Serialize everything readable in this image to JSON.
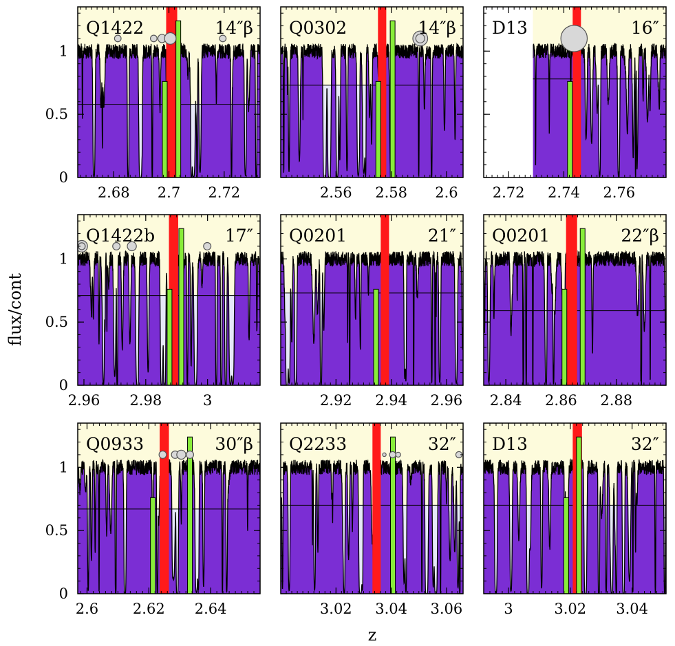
{
  "figure": {
    "ylabel": "flux/cont",
    "xlabel": "z",
    "yticks": [
      "0",
      "0.5",
      "1"
    ],
    "yrange": [
      0,
      1.35
    ]
  },
  "colors": {
    "background_panel": "#fdfbdc",
    "absorption_fill": "#7b2ed4",
    "threshold_shade": "#e6e8f8",
    "red_marker": "#ff1a1a",
    "green_marker": "#88ec3a",
    "circle_fill": "#d8d8d8",
    "circle_stroke": "#555555",
    "spectrum_line": "#000000"
  },
  "chart_data": [
    {
      "type": "area",
      "title": "Q1422",
      "sep": "14\"",
      "beta": true,
      "xlim": [
        2.667,
        2.733
      ],
      "xticks": [
        2.68,
        2.7,
        2.72
      ],
      "xticklabels": [
        "2.68",
        "2.7",
        "2.72"
      ],
      "threshold": 0.58,
      "cover_end": null,
      "red": [
        2.699,
        2.703
      ],
      "green": [
        {
          "z": 2.6985,
          "h": 0.76
        },
        {
          "z": 2.7034,
          "h": 1.24
        }
      ],
      "circles": [
        {
          "z": 2.6815,
          "y": 1.1,
          "r": 0.4
        },
        {
          "z": 2.6945,
          "y": 1.1,
          "r": 0.4
        },
        {
          "z": 2.6975,
          "y": 1.1,
          "r": 0.5
        },
        {
          "z": 2.7005,
          "y": 1.1,
          "r": 0.7
        },
        {
          "z": 2.7195,
          "y": 1.1,
          "r": 0.4
        }
      ],
      "seed": 11
    },
    {
      "type": "area",
      "title": "Q0302",
      "sep": "14\"",
      "beta": true,
      "xlim": [
        2.54,
        2.606
      ],
      "xticks": [
        2.56,
        2.58,
        2.6
      ],
      "xticklabels": [
        "2.56",
        "2.58",
        "2.6"
      ],
      "threshold": 0.73,
      "cover_end": null,
      "red": [
        2.5752,
        2.5782
      ],
      "green": [
        {
          "z": 2.5753,
          "h": 0.76
        },
        {
          "z": 2.5805,
          "h": 1.24
        }
      ],
      "circles": [
        {
          "z": 2.5905,
          "y": 1.1,
          "r": 0.9,
          "ring": true
        }
      ],
      "seed": 22
    },
    {
      "type": "area",
      "title": "D13",
      "sep": "16\"",
      "beta": false,
      "xlim": [
        2.711,
        2.777
      ],
      "xticks": [
        2.72,
        2.74,
        2.76
      ],
      "xticklabels": [
        "2.72",
        "2.74",
        "2.76"
      ],
      "threshold": 0.78,
      "cover_end": 2.7288,
      "red": [
        2.7432,
        2.7462
      ],
      "green": [
        {
          "z": 2.7422,
          "h": 0.76
        }
      ],
      "circles": [
        {
          "z": 2.7437,
          "y": 1.1,
          "r": 1.6
        }
      ],
      "seed": 33
    },
    {
      "type": "area",
      "title": "Q1422b",
      "sep": "17\"",
      "beta": false,
      "xlim": [
        2.958,
        3.017
      ],
      "xticks": [
        2.96,
        2.98,
        3.0
      ],
      "xticklabels": [
        "2.96",
        "2.98",
        "3"
      ],
      "threshold": 0.71,
      "cover_end": null,
      "red": [
        2.9875,
        2.9905
      ],
      "green": [
        {
          "z": 2.9877,
          "h": 0.76
        },
        {
          "z": 2.9915,
          "h": 1.24
        }
      ],
      "circles": [
        {
          "z": 2.9593,
          "y": 1.1,
          "r": 0.7,
          "ring": true
        },
        {
          "z": 2.9705,
          "y": 1.1,
          "r": 0.45
        },
        {
          "z": 2.9755,
          "y": 1.1,
          "r": 0.55
        },
        {
          "z": 2.9999,
          "y": 1.1,
          "r": 0.45
        }
      ],
      "seed": 44
    },
    {
      "type": "area",
      "title": "Q0201",
      "sep": "21\"",
      "beta": false,
      "xlim": [
        2.9,
        2.966
      ],
      "xticks": [
        2.92,
        2.94,
        2.96
      ],
      "xticklabels": [
        "2.92",
        "2.94",
        "2.96"
      ],
      "threshold": 0.73,
      "cover_end": null,
      "red": [
        2.9362,
        2.9392
      ],
      "green": [
        {
          "z": 2.9345,
          "h": 0.76
        }
      ],
      "circles": [],
      "seed": 55
    },
    {
      "type": "area",
      "title": "Q0201",
      "sep": "22\"",
      "beta": true,
      "xlim": [
        2.832,
        2.898
      ],
      "xticks": [
        2.84,
        2.86,
        2.88
      ],
      "xticklabels": [
        "2.84",
        "2.86",
        "2.88"
      ],
      "threshold": 0.59,
      "cover_end": null,
      "red": [
        2.8618,
        2.8658
      ],
      "green": [
        {
          "z": 2.8612,
          "h": 0.76
        },
        {
          "z": 2.8678,
          "h": 1.24
        }
      ],
      "circles": [],
      "seed": 66
    },
    {
      "type": "area",
      "title": "Q0933",
      "sep": "30\"",
      "beta": true,
      "xlim": [
        2.597,
        2.656
      ],
      "xticks": [
        2.6,
        2.62,
        2.64
      ],
      "xticklabels": [
        "2.6",
        "2.62",
        "2.64"
      ],
      "threshold": 0.67,
      "cover_end": null,
      "red": [
        2.6235,
        2.6265
      ],
      "green": [
        {
          "z": 2.6213,
          "h": 0.76
        },
        {
          "z": 2.6333,
          "h": 1.24
        }
      ],
      "circles": [
        {
          "z": 2.6245,
          "y": 1.1,
          "r": 0.45
        },
        {
          "z": 2.6285,
          "y": 1.1,
          "r": 0.45
        },
        {
          "z": 2.6305,
          "y": 1.1,
          "r": 0.55
        },
        {
          "z": 2.6333,
          "y": 1.1,
          "r": 0.45
        }
      ],
      "seed": 77
    },
    {
      "type": "area",
      "title": "Q2233",
      "sep": "32\"",
      "beta": false,
      "xlim": [
        3.0,
        3.066
      ],
      "xticks": [
        3.02,
        3.04,
        3.06
      ],
      "xticklabels": [
        "3.02",
        "3.04",
        "3.06"
      ],
      "threshold": 0.7,
      "cover_end": null,
      "red": [
        3.0332,
        3.0362
      ],
      "green": [
        {
          "z": 3.0406,
          "h": 1.24
        }
      ],
      "circles": [
        {
          "z": 3.0375,
          "y": 1.1,
          "r": 0.22
        },
        {
          "z": 3.0405,
          "y": 1.1,
          "r": 0.38
        },
        {
          "z": 3.0425,
          "y": 1.1,
          "r": 0.3
        },
        {
          "z": 3.0645,
          "y": 1.1,
          "r": 0.38
        }
      ],
      "seed": 88
    },
    {
      "type": "area",
      "title": "D13",
      "sep": "32\"",
      "beta": false,
      "xlim": [
        2.992,
        3.051
      ],
      "xticks": [
        3.0,
        3.02,
        3.04
      ],
      "xticklabels": [
        "3",
        "3.02",
        "3.04"
      ],
      "threshold": 0.7,
      "cover_end": null,
      "red": [
        3.0208,
        3.0238
      ],
      "green": [
        {
          "z": 3.0187,
          "h": 0.76
        },
        {
          "z": 3.0228,
          "h": 1.24
        }
      ],
      "circles": [],
      "seed": 99
    }
  ]
}
